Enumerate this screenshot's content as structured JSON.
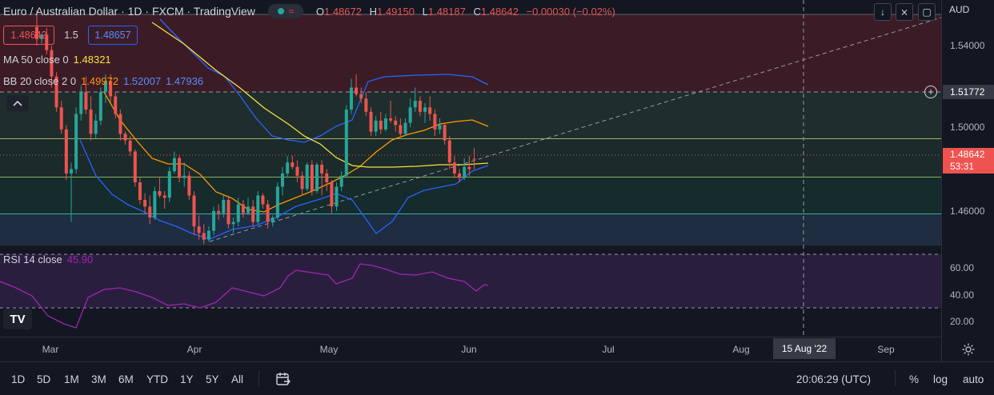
{
  "header": {
    "symbol": "Euro / Australian Dollar · 1D · FXCM · TradingView",
    "ohlc": {
      "o_label": "O",
      "o": "1.48672",
      "h_label": "H",
      "h": "1.49150",
      "l_label": "L",
      "l": "1.48187",
      "c_label": "C",
      "c": "1.48642",
      "change": "−0.00030 (−0.02%)"
    },
    "sell_price": "1.48642",
    "spread": "1.5",
    "buy_price": "1.48657",
    "currency": "AUD"
  },
  "indicators": {
    "ma": {
      "label": "MA 50 close 0",
      "value": "1.48321",
      "color": "#f5e23c"
    },
    "bb": {
      "label": "BB 20 close 2 0",
      "basis": "1.49972",
      "upper": "1.52007",
      "lower": "1.47936",
      "basis_color": "#ff9800",
      "band_color": "#2962ff"
    },
    "rsi": {
      "label": "RSI 14 close",
      "value": "45.90",
      "color": "#9c27b0"
    }
  },
  "price_axis": {
    "ticks": [
      "1.54000",
      "1.50000",
      "1.46000"
    ],
    "crosshair_price": "1.51772",
    "last_price": "1.48642",
    "countdown": "53:31"
  },
  "rsi_axis": {
    "ticks": [
      "60.00",
      "40.00",
      "20.00"
    ]
  },
  "time_axis": {
    "labels": [
      "Mar",
      "Apr",
      "May",
      "Jun",
      "Jul",
      "Aug",
      "Sep"
    ],
    "crosshair_date": "15 Aug '22"
  },
  "bottom_bar": {
    "ranges": [
      "1D",
      "5D",
      "1M",
      "3M",
      "6M",
      "YTD",
      "1Y",
      "5Y",
      "All"
    ],
    "clock": "20:06:29 (UTC)",
    "percent_label": "%",
    "log_label": "log",
    "auto_label": "auto"
  },
  "logo_text": "TV",
  "colors": {
    "up": "#26a69a",
    "down": "#ef5350",
    "background": "#131722",
    "grid": "#2a2e39"
  },
  "chart_data": {
    "type": "candlestick",
    "timeframe": "1D",
    "ylim": [
      1.4477,
      1.558
    ],
    "candles": [
      [
        1.5465,
        1.554,
        1.538,
        1.541
      ],
      [
        1.541,
        1.5435,
        1.539,
        1.543
      ],
      [
        1.543,
        1.546,
        1.534,
        1.536
      ],
      [
        1.536,
        1.538,
        1.519,
        1.524
      ],
      [
        1.524,
        1.526,
        1.508,
        1.51
      ],
      [
        1.51,
        1.513,
        1.498,
        1.5
      ],
      [
        1.5,
        1.502,
        1.477,
        1.48
      ],
      [
        1.48,
        1.485,
        1.458,
        1.482
      ],
      [
        1.482,
        1.51,
        1.48,
        1.507
      ],
      [
        1.507,
        1.52,
        1.504,
        1.517
      ],
      [
        1.517,
        1.524,
        1.507,
        1.509
      ],
      [
        1.509,
        1.515,
        1.495,
        1.498
      ],
      [
        1.498,
        1.507,
        1.496,
        1.504
      ],
      [
        1.504,
        1.519,
        1.502,
        1.517
      ],
      [
        1.517,
        1.525,
        1.512,
        1.522
      ],
      [
        1.522,
        1.525,
        1.512,
        1.515
      ],
      [
        1.515,
        1.517,
        1.505,
        1.507
      ],
      [
        1.507,
        1.509,
        1.495,
        1.498
      ],
      [
        1.498,
        1.499,
        1.493,
        1.495
      ],
      [
        1.495,
        1.497,
        1.488,
        1.49
      ],
      [
        1.49,
        1.491,
        1.474,
        1.476
      ],
      [
        1.476,
        1.478,
        1.466,
        1.468
      ],
      [
        1.468,
        1.471,
        1.462,
        1.465
      ],
      [
        1.465,
        1.47,
        1.457,
        1.46
      ],
      [
        1.46,
        1.474,
        1.459,
        1.472
      ],
      [
        1.472,
        1.478,
        1.469,
        1.47
      ],
      [
        1.47,
        1.472,
        1.464,
        1.469
      ],
      [
        1.469,
        1.483,
        1.467,
        1.481
      ],
      [
        1.481,
        1.49,
        1.48,
        1.487
      ],
      [
        1.487,
        1.488,
        1.476,
        1.478
      ],
      [
        1.478,
        1.485,
        1.474,
        1.479
      ],
      [
        1.479,
        1.481,
        1.468,
        1.47
      ],
      [
        1.47,
        1.472,
        1.452,
        1.456
      ],
      [
        1.456,
        1.461,
        1.45,
        1.453
      ],
      [
        1.453,
        1.457,
        1.448,
        1.45
      ],
      [
        1.45,
        1.456,
        1.449,
        1.454
      ],
      [
        1.454,
        1.465,
        1.452,
        1.463
      ],
      [
        1.463,
        1.466,
        1.459,
        1.462
      ],
      [
        1.462,
        1.47,
        1.46,
        1.468
      ],
      [
        1.468,
        1.47,
        1.455,
        1.457
      ],
      [
        1.457,
        1.46,
        1.453,
        1.458
      ],
      [
        1.458,
        1.469,
        1.456,
        1.466
      ],
      [
        1.466,
        1.468,
        1.46,
        1.462
      ],
      [
        1.462,
        1.469,
        1.461,
        1.465
      ],
      [
        1.465,
        1.468,
        1.456,
        1.458
      ],
      [
        1.458,
        1.472,
        1.457,
        1.47
      ],
      [
        1.47,
        1.471,
        1.464,
        1.466
      ],
      [
        1.466,
        1.468,
        1.455,
        1.458
      ],
      [
        1.458,
        1.461,
        1.456,
        1.46
      ],
      [
        1.46,
        1.476,
        1.459,
        1.474
      ],
      [
        1.474,
        1.483,
        1.47,
        1.48
      ],
      [
        1.48,
        1.488,
        1.478,
        1.485
      ],
      [
        1.485,
        1.488,
        1.482,
        1.483
      ],
      [
        1.483,
        1.486,
        1.476,
        1.479
      ],
      [
        1.479,
        1.481,
        1.47,
        1.473
      ],
      [
        1.473,
        1.485,
        1.472,
        1.484
      ],
      [
        1.484,
        1.486,
        1.47,
        1.472
      ],
      [
        1.472,
        1.485,
        1.471,
        1.484
      ],
      [
        1.484,
        1.486,
        1.47,
        1.48
      ],
      [
        1.48,
        1.482,
        1.472,
        1.476
      ],
      [
        1.476,
        1.477,
        1.462,
        1.465
      ],
      [
        1.465,
        1.476,
        1.463,
        1.474
      ],
      [
        1.474,
        1.481,
        1.472,
        1.479
      ],
      [
        1.479,
        1.511,
        1.478,
        1.509
      ],
      [
        1.509,
        1.523,
        1.507,
        1.519
      ],
      [
        1.519,
        1.525,
        1.515,
        1.516
      ],
      [
        1.516,
        1.519,
        1.512,
        1.514
      ],
      [
        1.514,
        1.517,
        1.506,
        1.508
      ],
      [
        1.508,
        1.51,
        1.497,
        1.499
      ],
      [
        1.499,
        1.506,
        1.497,
        1.504
      ],
      [
        1.504,
        1.508,
        1.498,
        1.5
      ],
      [
        1.5,
        1.507,
        1.499,
        1.505
      ],
      [
        1.505,
        1.513,
        1.503,
        1.504
      ],
      [
        1.504,
        1.506,
        1.499,
        1.502
      ],
      [
        1.502,
        1.505,
        1.497,
        1.498
      ],
      [
        1.498,
        1.505,
        1.497,
        1.503
      ],
      [
        1.503,
        1.514,
        1.501,
        1.51
      ],
      [
        1.51,
        1.519,
        1.508,
        1.513
      ],
      [
        1.513,
        1.515,
        1.506,
        1.508
      ],
      [
        1.508,
        1.512,
        1.503,
        1.51
      ],
      [
        1.51,
        1.515,
        1.504,
        1.507
      ],
      [
        1.507,
        1.509,
        1.497,
        1.5
      ],
      [
        1.5,
        1.505,
        1.498,
        1.502
      ],
      [
        1.502,
        1.503,
        1.493,
        1.495
      ],
      [
        1.495,
        1.497,
        1.482,
        1.485
      ],
      [
        1.485,
        1.488,
        1.478,
        1.48
      ],
      [
        1.48,
        1.482,
        1.476,
        1.478
      ],
      [
        1.478,
        1.487,
        1.477,
        1.483
      ],
      [
        1.483,
        1.488,
        1.479,
        1.482
      ],
      [
        1.4867,
        1.4915,
        1.4819,
        1.4864
      ]
    ]
  }
}
